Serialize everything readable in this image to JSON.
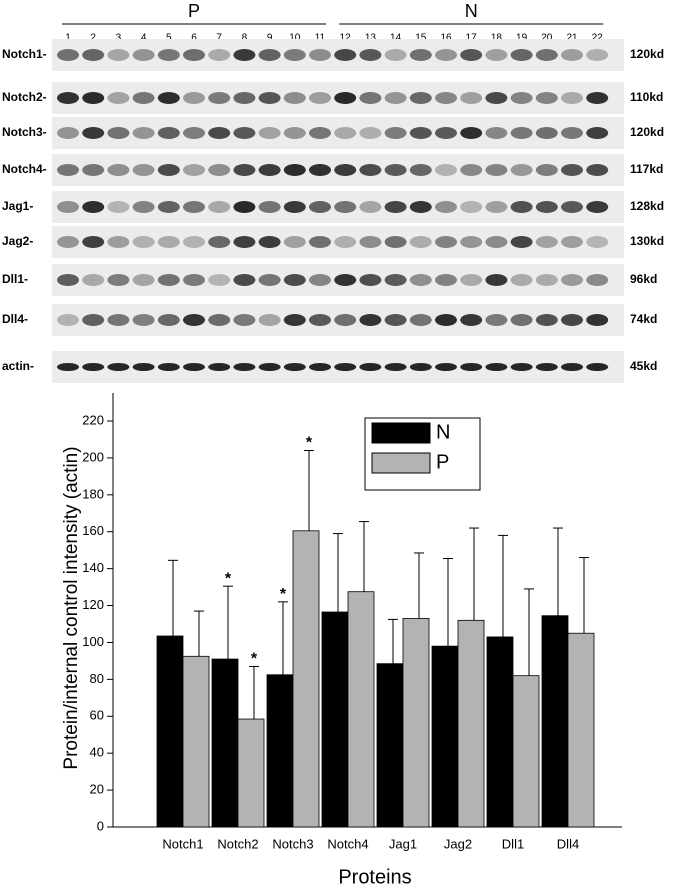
{
  "blot": {
    "groups": [
      "P",
      "N"
    ],
    "lanes": [
      "1",
      "2",
      "3",
      "4",
      "5",
      "6",
      "7",
      "8",
      "9",
      "10",
      "11",
      "12",
      "13",
      "14",
      "15",
      "16",
      "17",
      "18",
      "19",
      "20",
      "21",
      "22"
    ],
    "rows": [
      {
        "label": "Notch1-",
        "size": "120kd"
      },
      {
        "label": "Notch2-",
        "size": "110kd"
      },
      {
        "label": "Notch3-",
        "size": "120kd"
      },
      {
        "label": "Notch4-",
        "size": "117kd"
      },
      {
        "label": "Jag1-",
        "size": "128kd"
      },
      {
        "label": "Jag2-",
        "size": "130kd"
      },
      {
        "label": "Dll1-",
        "size": "96kd"
      },
      {
        "label": "Dll4-",
        "size": "74kd"
      },
      {
        "label": "actin-",
        "size": "45kd"
      }
    ]
  },
  "chart_data": {
    "type": "bar",
    "x_label": "Proteins",
    "y_label": "Protein/internal control intensity (actin)",
    "categories": [
      "Notch1",
      "Notch2",
      "Notch3",
      "Notch4",
      "Jag1",
      "Jag2",
      "Dll1",
      "Dll4"
    ],
    "series": [
      {
        "name": "N",
        "color": "#000000",
        "values": [
          103.5,
          91,
          82.5,
          116.5,
          88.5,
          98,
          103,
          114.5
        ],
        "errors": [
          41,
          39.5,
          39.5,
          42.5,
          24,
          47.5,
          55,
          47.5
        ],
        "labels": [
          null,
          "*",
          "*",
          null,
          null,
          null,
          null,
          null
        ]
      },
      {
        "name": "P",
        "color": "#b3b3b3",
        "values": [
          92.5,
          58.5,
          160.5,
          127.5,
          113,
          112,
          82,
          105
        ],
        "errors": [
          24.5,
          28.5,
          43.5,
          38,
          35.5,
          50,
          47,
          41
        ],
        "labels": [
          null,
          "*",
          "*",
          null,
          null,
          null,
          null,
          null
        ]
      }
    ],
    "ylim": [
      0,
      220
    ],
    "yticks": [
      0,
      20,
      40,
      60,
      80,
      100,
      120,
      140,
      160,
      180,
      200,
      220
    ],
    "legend": "top-center"
  }
}
